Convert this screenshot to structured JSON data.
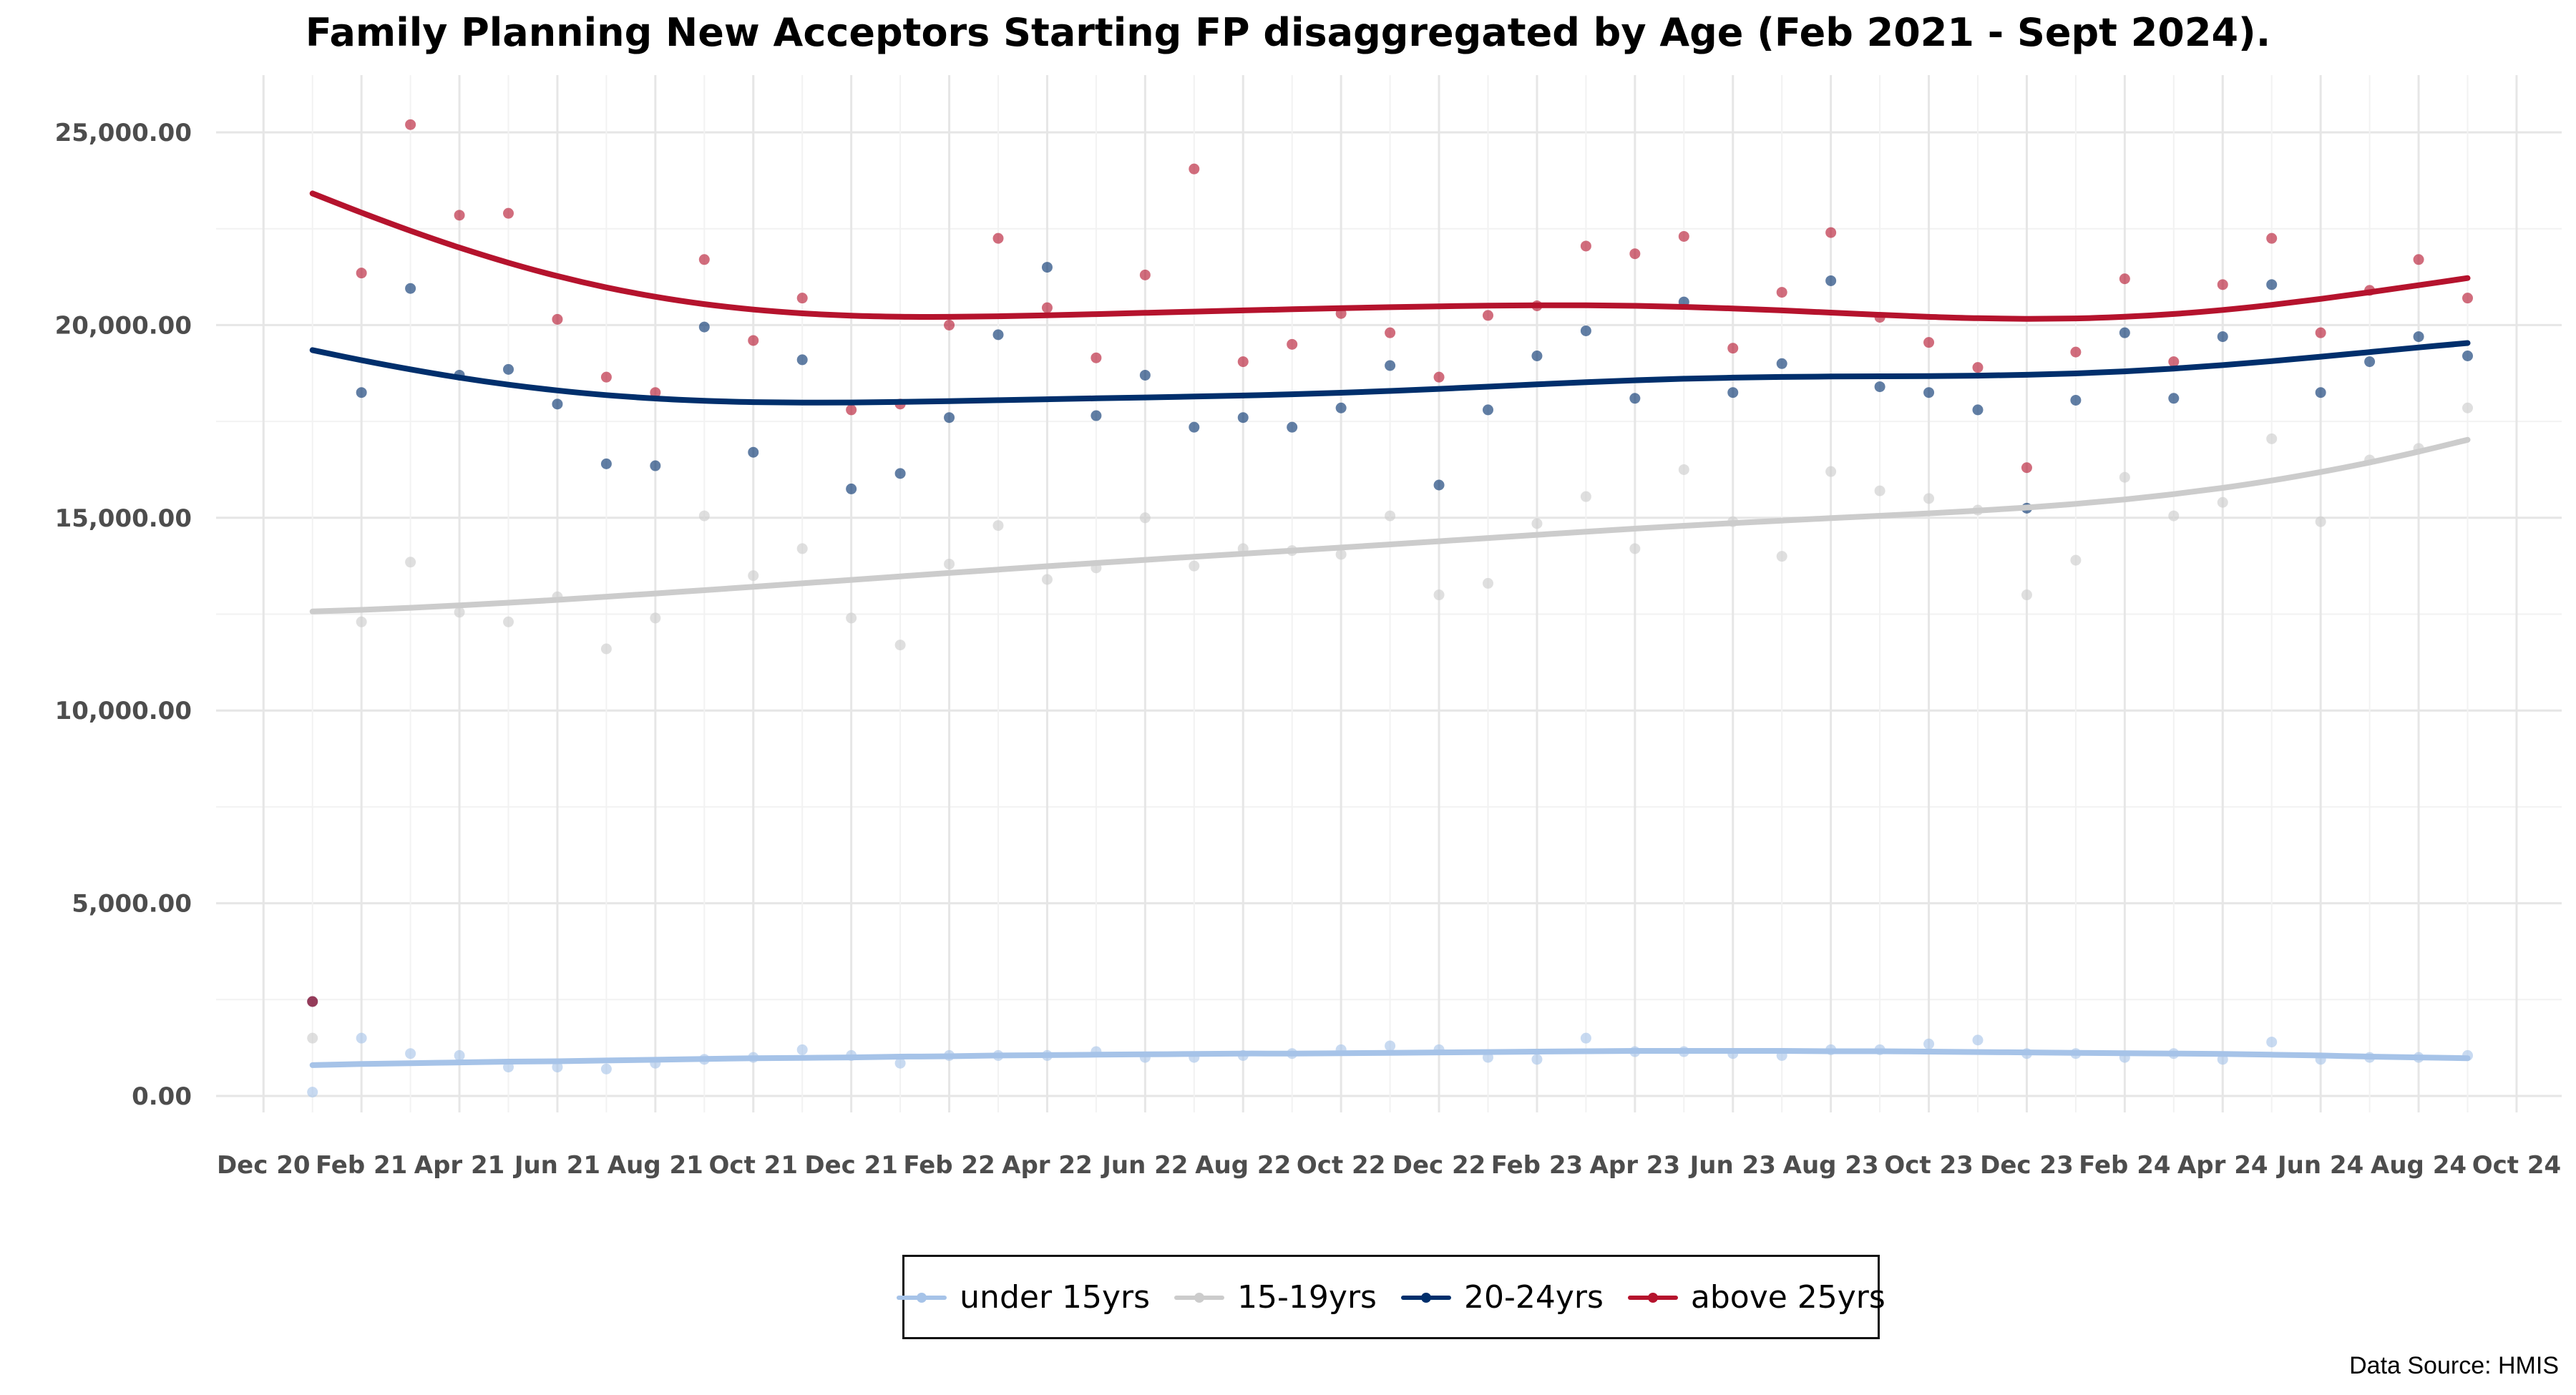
{
  "chart_data": {
    "type": "scatter",
    "title": "Family Planning New Acceptors Starting FP disaggregated by Age (Feb 2021 - Sept 2024).",
    "xlabel": "",
    "ylabel": "",
    "ylim": [
      0,
      25000
    ],
    "yticks": [
      0,
      5000,
      10000,
      15000,
      20000,
      25000
    ],
    "ytick_labels": [
      "0.00",
      "5,000.00",
      "10,000.00",
      "15,000.00",
      "20,000.00",
      "25,000.00"
    ],
    "x": [
      "Jan 21",
      "Feb 21",
      "Mar 21",
      "Apr 21",
      "May 21",
      "Jun 21",
      "Jul 21",
      "Aug 21",
      "Sep 21",
      "Oct 21",
      "Nov 21",
      "Dec 21",
      "Jan 22",
      "Feb 22",
      "Mar 22",
      "Apr 22",
      "May 22",
      "Jun 22",
      "Jul 22",
      "Aug 22",
      "Sep 22",
      "Oct 22",
      "Nov 22",
      "Dec 22",
      "Jan 23",
      "Feb 23",
      "Mar 23",
      "Apr 23",
      "May 23",
      "Jun 23",
      "Jul 23",
      "Aug 23",
      "Sep 23",
      "Oct 23",
      "Nov 23",
      "Dec 23",
      "Jan 24",
      "Feb 24",
      "Mar 24",
      "Apr 24",
      "May 24",
      "Jun 24",
      "Jul 24",
      "Aug 24",
      "Sep 24"
    ],
    "xticks": [
      "Dec 20",
      "Feb 21",
      "Apr 21",
      "Jun 21",
      "Aug 21",
      "Oct 21",
      "Dec 21",
      "Feb 22",
      "Apr 22",
      "Jun 22",
      "Aug 22",
      "Oct 22",
      "Dec 22",
      "Feb 23",
      "Apr 23",
      "Jun 23",
      "Aug 23",
      "Oct 23",
      "Dec 23",
      "Feb 24",
      "Apr 24",
      "Jun 24",
      "Aug 24",
      "Oct 24"
    ],
    "grid": true,
    "legend_position": "bottom",
    "series": [
      {
        "name": "under 15yrs",
        "color": "#a6c3e8",
        "values": [
          100,
          1500,
          1100,
          1050,
          750,
          750,
          700,
          850,
          950,
          1000,
          1200,
          1050,
          850,
          1050,
          1050,
          1050,
          1150,
          1000,
          1000,
          1050,
          1100,
          1200,
          1300,
          1200,
          1000,
          950,
          1500,
          1150,
          1150,
          1100,
          1050,
          1200,
          1200,
          1350,
          1450,
          1100,
          1100,
          1000,
          1100,
          950,
          1400,
          950,
          1000,
          1000,
          1050
        ],
        "trend": [
          800,
          830,
          850,
          870,
          890,
          900,
          920,
          940,
          960,
          980,
          990,
          1000,
          1020,
          1030,
          1050,
          1060,
          1070,
          1080,
          1090,
          1100,
          1100,
          1110,
          1120,
          1130,
          1140,
          1150,
          1160,
          1170,
          1170,
          1170,
          1170,
          1160,
          1160,
          1150,
          1140,
          1130,
          1120,
          1110,
          1100,
          1090,
          1070,
          1050,
          1020,
          1000,
          980
        ]
      },
      {
        "name": "15-19yrs",
        "color": "#cccccc",
        "values": [
          1500,
          12300,
          13850,
          12550,
          12300,
          12950,
          11600,
          12400,
          15050,
          13500,
          14200,
          12400,
          11700,
          13800,
          14800,
          13400,
          13700,
          15000,
          13750,
          14200,
          14150,
          14050,
          15050,
          13000,
          13300,
          14850,
          15550,
          14200,
          16250,
          14900,
          14000,
          16200,
          15700,
          15500,
          15200,
          13000,
          13900,
          16050,
          15050,
          15400,
          17050,
          14900,
          16500,
          16800,
          17850
        ]
      },
      {
        "name": "20-24yrs",
        "color": "#002f6c",
        "values": [
          2450,
          18250,
          20950,
          18700,
          18850,
          17950,
          16400,
          16350,
          19950,
          16700,
          19100,
          15750,
          16150,
          17600,
          19750,
          21500,
          17650,
          18700,
          17350,
          17600,
          17350,
          17850,
          18950,
          15850,
          17800,
          19200,
          19850,
          18100,
          20600,
          18250,
          19000,
          21150,
          18400,
          18250,
          17800,
          15250,
          18050,
          19800,
          18100,
          19700,
          21050,
          18250,
          19050,
          19700,
          19200
        ]
      },
      {
        "name": "above 25yrs",
        "color": "#b5132d",
        "values": [
          2450,
          21350,
          25200,
          22850,
          22900,
          20150,
          18650,
          18250,
          21700,
          19600,
          20700,
          17800,
          17950,
          20000,
          22250,
          20450,
          19150,
          21300,
          24050,
          19050,
          19500,
          20300,
          19800,
          18650,
          20250,
          20500,
          22050,
          21850,
          22300,
          19400,
          20850,
          22400,
          20200,
          19550,
          18900,
          16300,
          19300,
          21200,
          19050,
          21050,
          22250,
          19800,
          20900,
          21700,
          20700
        ]
      }
    ]
  },
  "legend": {
    "items": [
      {
        "label": "under 15yrs",
        "color": "#a6c3e8"
      },
      {
        "label": "15-19yrs",
        "color": "#cccccc"
      },
      {
        "label": "20-24yrs",
        "color": "#002f6c"
      },
      {
        "label": "above 25yrs",
        "color": "#b5132d"
      }
    ]
  },
  "source_note": "Data Source: HMIS"
}
